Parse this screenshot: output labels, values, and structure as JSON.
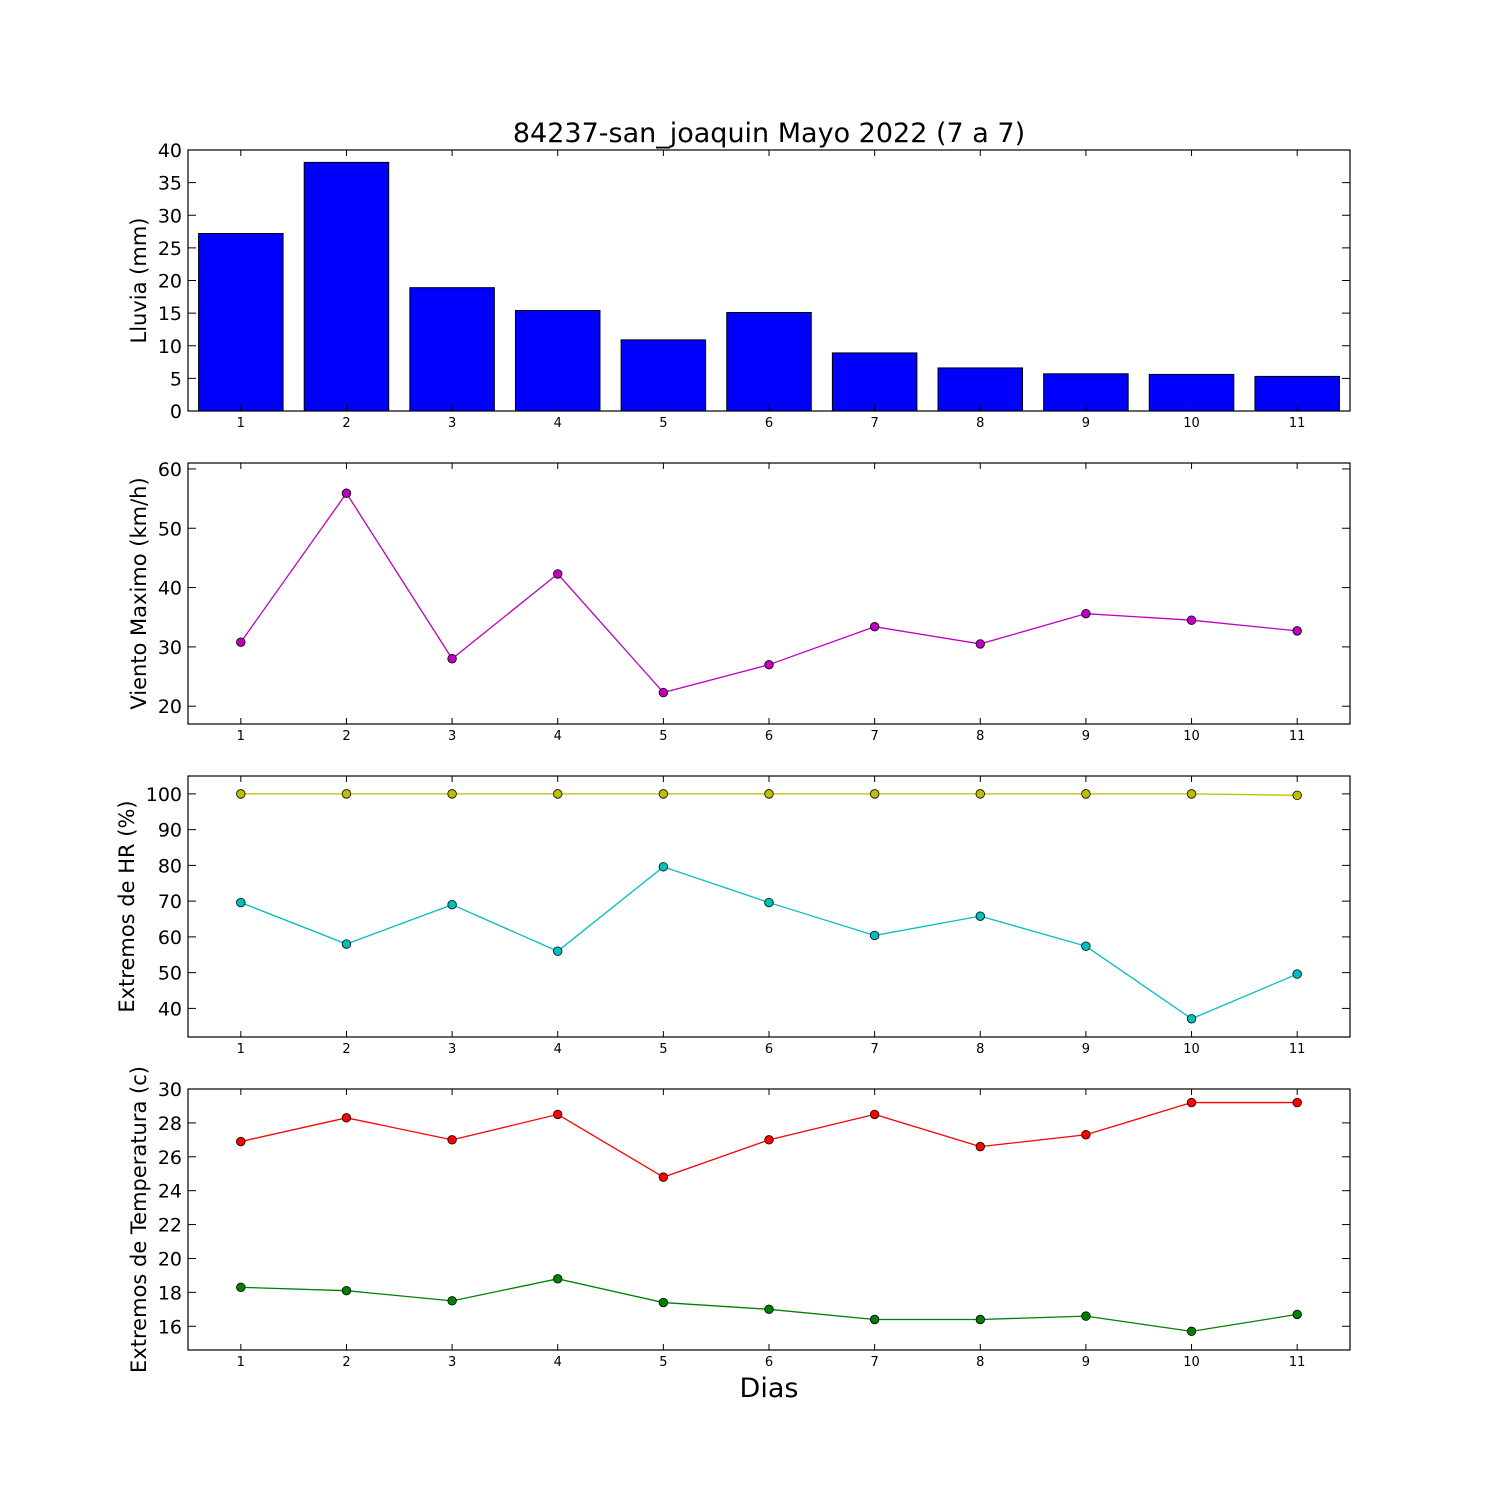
{
  "title": "84237-san_joaquin Mayo 2022  (7 a 7)",
  "xlabel": "Dias",
  "chart_data": [
    {
      "type": "bar",
      "ylabel": "Lluvia (mm)",
      "x": [
        1,
        2,
        3,
        4,
        5,
        6,
        7,
        8,
        9,
        10,
        11
      ],
      "ylim": [
        0,
        40
      ],
      "yticks": [
        0,
        5,
        10,
        15,
        20,
        25,
        30,
        35,
        40
      ],
      "series": [
        {
          "color": "#0000ff",
          "values": [
            27.2,
            38.1,
            18.9,
            15.4,
            10.9,
            15.1,
            8.9,
            6.6,
            5.7,
            5.6,
            5.3
          ]
        }
      ]
    },
    {
      "type": "line",
      "ylabel": "Viento Maximo (km/h)",
      "x": [
        1,
        2,
        3,
        4,
        5,
        6,
        7,
        8,
        9,
        10,
        11
      ],
      "ylim": [
        17,
        61
      ],
      "yticks": [
        20,
        30,
        40,
        50,
        60
      ],
      "series": [
        {
          "color": "#bf00bf",
          "values": [
            30.8,
            55.9,
            28.0,
            42.3,
            22.3,
            27.0,
            33.4,
            30.5,
            35.6,
            34.5,
            32.7
          ]
        }
      ]
    },
    {
      "type": "line",
      "ylabel": "Extremos de HR (%)",
      "x": [
        1,
        2,
        3,
        4,
        5,
        6,
        7,
        8,
        9,
        10,
        11
      ],
      "ylim": [
        32,
        105
      ],
      "yticks": [
        40,
        50,
        60,
        70,
        80,
        90,
        100
      ],
      "series": [
        {
          "color": "#bfbf00",
          "values": [
            100,
            100,
            100,
            100,
            100,
            100,
            100,
            100,
            100,
            100,
            99.6
          ]
        },
        {
          "color": "#00bfbf",
          "values": [
            69.6,
            58.0,
            69.0,
            56.0,
            79.6,
            69.6,
            60.4,
            65.8,
            57.4,
            37.1,
            49.6
          ]
        }
      ]
    },
    {
      "type": "line",
      "ylabel": "Extremos de Temperatura (c)",
      "x": [
        1,
        2,
        3,
        4,
        5,
        6,
        7,
        8,
        9,
        10,
        11
      ],
      "ylim": [
        14.6,
        30
      ],
      "yticks": [
        16,
        18,
        20,
        22,
        24,
        26,
        28,
        30
      ],
      "series": [
        {
          "color": "#ff0000",
          "values": [
            26.9,
            28.3,
            27.0,
            28.5,
            24.8,
            27.0,
            28.5,
            26.6,
            27.3,
            29.2,
            29.2
          ]
        },
        {
          "color": "#008000",
          "values": [
            18.3,
            18.1,
            17.5,
            18.8,
            17.4,
            17.0,
            16.4,
            16.4,
            16.6,
            15.7,
            16.7
          ]
        }
      ]
    }
  ]
}
